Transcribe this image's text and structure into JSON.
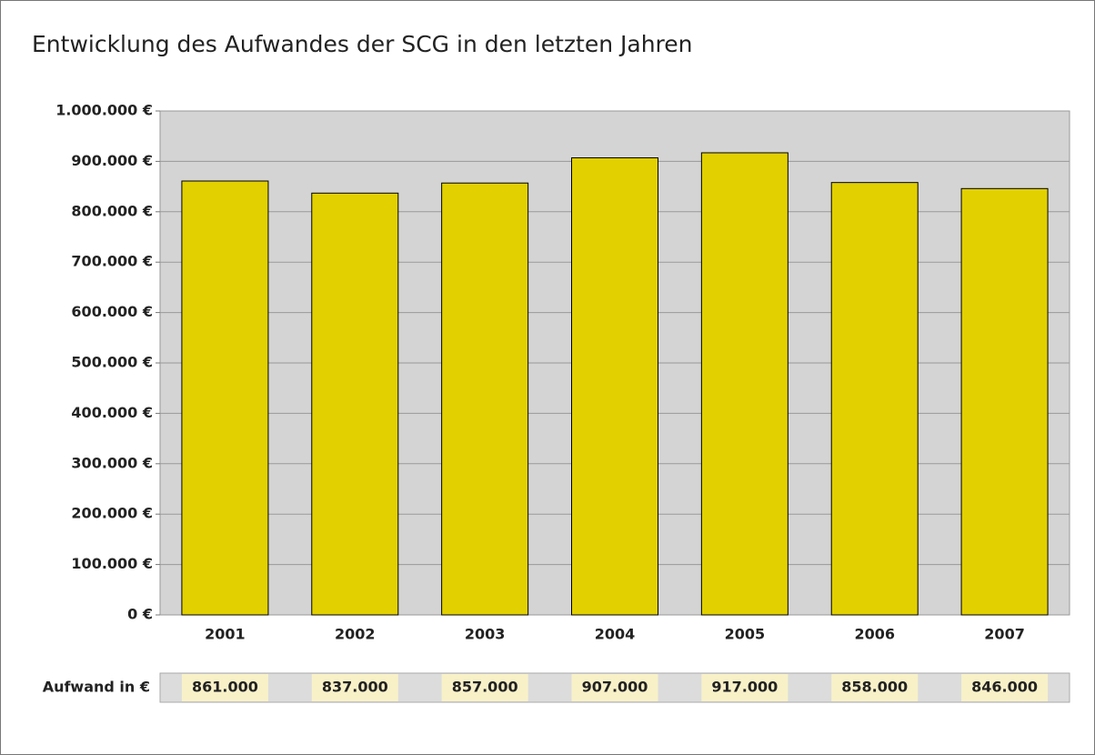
{
  "chart_data": {
    "type": "bar",
    "title": "Entwicklung des Aufwandes der SCG in den letzten Jahren",
    "categories": [
      "2001",
      "2002",
      "2003",
      "2004",
      "2005",
      "2006",
      "2007"
    ],
    "series": [
      {
        "name": "Aufwand in €",
        "color": "#e2d000",
        "values": [
          861000,
          837000,
          857000,
          907000,
          917000,
          858000,
          846000
        ],
        "value_labels": [
          "861.000",
          "837.000",
          "857.000",
          "907.000",
          "917.000",
          "858.000",
          "846.000"
        ]
      }
    ],
    "ylim": [
      0,
      1000000
    ],
    "yticks": [
      {
        "value": 0,
        "label": "0 €"
      },
      {
        "value": 100000,
        "label": "100.000 €"
      },
      {
        "value": 200000,
        "label": "200.000 €"
      },
      {
        "value": 300000,
        "label": "300.000 €"
      },
      {
        "value": 400000,
        "label": "400.000 €"
      },
      {
        "value": 500000,
        "label": "500.000 €"
      },
      {
        "value": 600000,
        "label": "600.000 €"
      },
      {
        "value": 700000,
        "label": "700.000 €"
      },
      {
        "value": 800000,
        "label": "800.000 €"
      },
      {
        "value": 900000,
        "label": "900.000 €"
      },
      {
        "value": 1000000,
        "label": "1.000.000 €"
      }
    ],
    "grid": true
  }
}
